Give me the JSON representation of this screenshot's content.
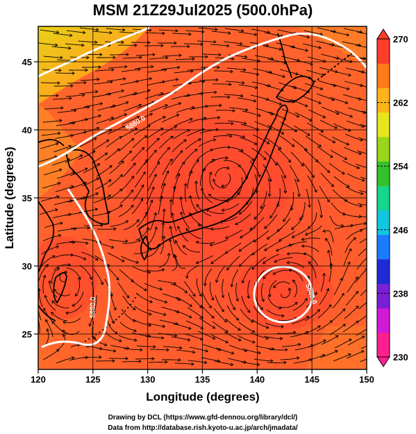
{
  "title": "MSM 21Z29Jul2025 (500.0hPa)",
  "axes": {
    "xlabel": "Longitude (degrees)",
    "ylabel": "Latitude  (degrees)",
    "xticks": [
      "120",
      "125",
      "130",
      "135",
      "140",
      "145",
      "150"
    ],
    "yticks": [
      "25",
      "30",
      "35",
      "40",
      "45"
    ],
    "xrange": [
      120,
      150
    ],
    "yrange": [
      22.4,
      47.6
    ]
  },
  "colorbar": {
    "ticks": [
      "270",
      "262",
      "254",
      "246",
      "238",
      "230"
    ],
    "range": [
      230,
      270
    ],
    "palette": [
      "#ff1f8f",
      "#d01ad6",
      "#7b1fd6",
      "#1f2ad6",
      "#1a7bff",
      "#11c7e0",
      "#16d68a",
      "#34c22c",
      "#9ad61a",
      "#e6e61a",
      "#ffb31a",
      "#ff7a1a",
      "#ff3d2a"
    ]
  },
  "contour": {
    "label": "5880.0",
    "color": "#ffffff"
  },
  "field_colors": {
    "warm": "#ff5236",
    "cool": "#f2c21a",
    "coast": "#000000",
    "grid": "#000000"
  },
  "credits": {
    "line1": "Drawing by DCL (https://www.gfd-dennou.org/library/dcl/)",
    "line2": "Data from http://database.rish.kyoto-u.ac.jp/arch/jmadata/"
  }
}
